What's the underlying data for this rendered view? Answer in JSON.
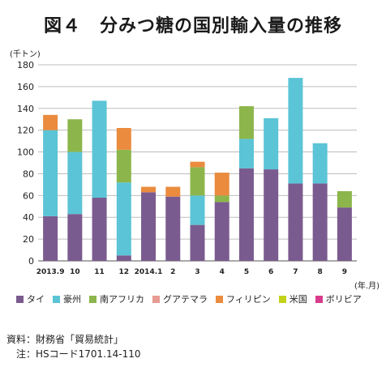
{
  "figure_title": "図４　分みつ糖の国別輸入量の推移",
  "source": "資料：財務省「貿易統計」",
  "note": "注：HSコード1701.14-110",
  "colors": {
    "タイ": "#7a5b8f",
    "豪州": "#5bc4d6",
    "南アフリカ": "#8cb64b",
    "グアテマラ": "#e79a92",
    "フィリピン": "#ea8b3e",
    "米国": "#c4d11a",
    "ボリビア": "#d83b8a"
  },
  "chart_data": {
    "type": "bar",
    "stacked": true,
    "y_unit_label": "(千トン)",
    "x_unit_label": "(年.月)",
    "ylim": [
      0,
      180
    ],
    "yticks": [
      0,
      20,
      40,
      60,
      80,
      100,
      120,
      140,
      160,
      180
    ],
    "grid": true,
    "legend_position": "bottom",
    "categories": [
      "2013.9",
      "10",
      "11",
      "12",
      "2014.1",
      "2",
      "3",
      "4",
      "5",
      "6",
      "7",
      "8",
      "9"
    ],
    "series": [
      {
        "name": "タイ",
        "values": [
          41,
          43,
          58,
          5,
          63,
          59,
          33,
          54,
          85,
          84,
          71,
          71,
          49
        ]
      },
      {
        "name": "豪州",
        "values": [
          79,
          57,
          89,
          67,
          0,
          0,
          27,
          0,
          27,
          47,
          97,
          37,
          0
        ]
      },
      {
        "name": "南アフリカ",
        "values": [
          0,
          30,
          0,
          30,
          0,
          0,
          26,
          6,
          30,
          0,
          0,
          0,
          15
        ]
      },
      {
        "name": "グアテマラ",
        "values": [
          0,
          0,
          0,
          0,
          0,
          0,
          0,
          0,
          0,
          0,
          0,
          0,
          0
        ]
      },
      {
        "name": "フィリピン",
        "values": [
          14,
          0,
          0,
          20,
          5,
          9,
          5,
          21,
          0,
          0,
          0,
          0,
          0
        ]
      },
      {
        "name": "米国",
        "values": [
          0,
          0,
          0,
          0,
          0,
          0,
          0,
          0,
          0,
          0,
          0,
          0,
          0
        ]
      },
      {
        "name": "ボリビア",
        "values": [
          0,
          0,
          0,
          0,
          0,
          0,
          0,
          0,
          0,
          0,
          0,
          0,
          0
        ]
      }
    ]
  }
}
